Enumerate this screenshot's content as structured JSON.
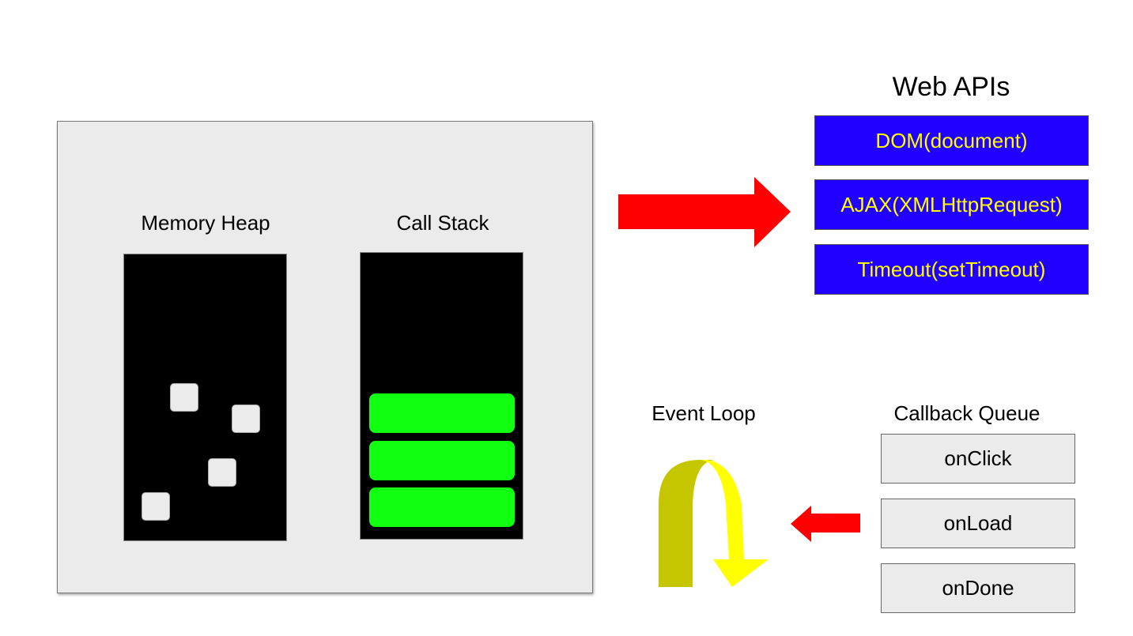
{
  "engine": {
    "heap_label": "Memory Heap",
    "stack_label": "Call Stack",
    "stack_frame_count": 3,
    "heap_object_count": 4
  },
  "web_apis": {
    "title": "Web APIs",
    "items": [
      "DOM(document)",
      "AJAX(XMLHttpRequest)",
      "Timeout(setTimeout)"
    ]
  },
  "event_loop": {
    "label": "Event Loop"
  },
  "callback_queue": {
    "label": "Callback Queue",
    "items": [
      "onClick",
      "onLoad",
      "onDone"
    ]
  },
  "colors": {
    "api_box": "#2200ff",
    "api_text": "#ffff00",
    "stack_frame": "#11ff11",
    "arrow": "#ff0000",
    "loop_light": "#ffff00",
    "loop_dark": "#c6c600",
    "engine_bg": "#ebebeb"
  }
}
